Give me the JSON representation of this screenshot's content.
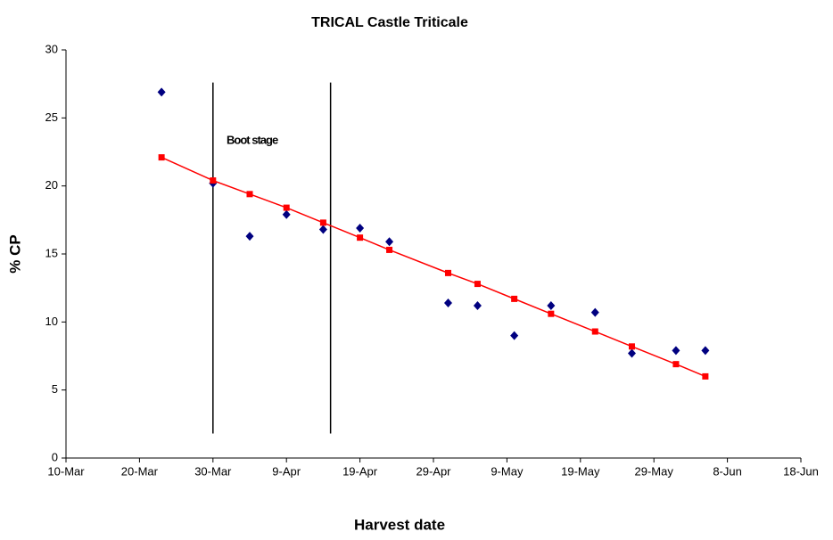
{
  "chart_data": {
    "type": "scatter",
    "title": "TRICAL Castle Triticale",
    "x_label": "Harvest date",
    "y_label": "% CP",
    "annotation": "Boot stage",
    "reference_lines": [
      "30-Mar",
      "15-Apr"
    ],
    "x": [
      "23-Mar",
      "30-Mar",
      "4-Apr",
      "9-Apr",
      "14-Apr",
      "19-Apr",
      "23-Apr",
      "1-May",
      "5-May",
      "10-May",
      "15-May",
      "21-May",
      "26-May",
      "1-Jun",
      "5-Jun"
    ],
    "series": [
      {
        "color": "#000080",
        "marker": "diamond",
        "line": false,
        "values": [
          26.9,
          20.2,
          16.3,
          17.9,
          16.8,
          16.9,
          15.9,
          11.4,
          11.2,
          9.0,
          11.2,
          10.7,
          7.7,
          7.9,
          7.9
        ]
      },
      {
        "color": "#ff0000",
        "marker": "square",
        "line": true,
        "values": [
          22.1,
          20.4,
          19.4,
          18.4,
          17.3,
          16.2,
          15.3,
          13.6,
          12.8,
          11.7,
          10.6,
          9.3,
          8.2,
          6.9,
          6.0
        ]
      }
    ],
    "xlim": [
      "10-Mar",
      "18-Jun"
    ],
    "xticks": [
      "10-Mar",
      "20-Mar",
      "30-Mar",
      "9-Apr",
      "19-Apr",
      "29-Apr",
      "9-May",
      "19-May",
      "29-May",
      "8-Jun",
      "18-Jun"
    ],
    "ylim": [
      0,
      30
    ],
    "yticks": [
      0,
      5,
      10,
      15,
      20,
      25,
      30
    ],
    "grid": false
  }
}
